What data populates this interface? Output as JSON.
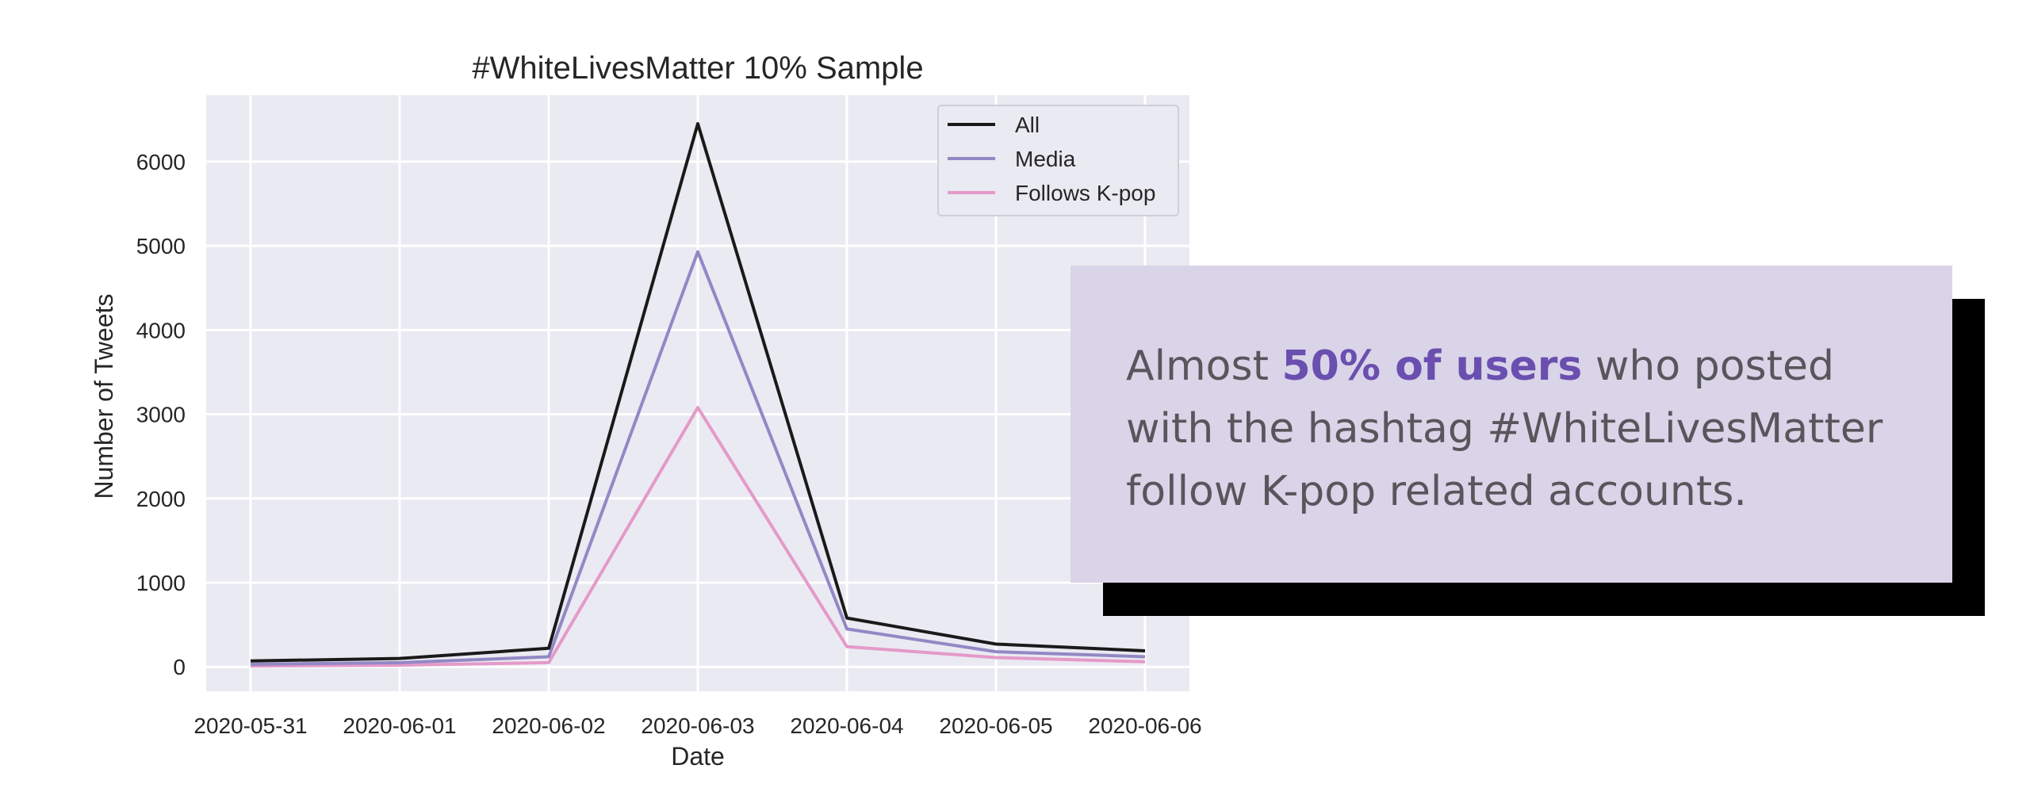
{
  "colors": {
    "plot_bg": "#eaeaf2",
    "grid": "#ffffff",
    "callout_bg": "#d9d4e7",
    "callout_shadow": "#000000",
    "callout_text": "#58565c",
    "emphasis": "#6a4fb0"
  },
  "chart_data": {
    "type": "line",
    "title": "#WhiteLivesMatter 10% Sample",
    "xlabel": "Date",
    "ylabel": "Number of Tweets",
    "x": [
      "2020-05-31",
      "2020-06-01",
      "2020-06-02",
      "2020-06-03",
      "2020-06-04",
      "2020-06-05",
      "2020-06-06"
    ],
    "yticks": [
      0,
      1000,
      2000,
      3000,
      4000,
      5000,
      6000
    ],
    "ylim": [
      -290,
      6790
    ],
    "grid": true,
    "legend_position": "top-right",
    "series": [
      {
        "name": "All",
        "color": "#1a1a1a",
        "values": [
          70,
          100,
          220,
          6450,
          580,
          270,
          190
        ]
      },
      {
        "name": "Media",
        "color": "#9388c5",
        "values": [
          30,
          50,
          120,
          4930,
          450,
          180,
          120
        ]
      },
      {
        "name": "Follows K-pop",
        "color": "#e49ac9",
        "values": [
          10,
          20,
          50,
          3080,
          240,
          110,
          60
        ]
      }
    ]
  },
  "callout": {
    "prefix": "Almost ",
    "emphasis": "50% of users",
    "suffix": " who posted with the hashtag #WhiteLivesMatter follow K-pop related accounts."
  }
}
